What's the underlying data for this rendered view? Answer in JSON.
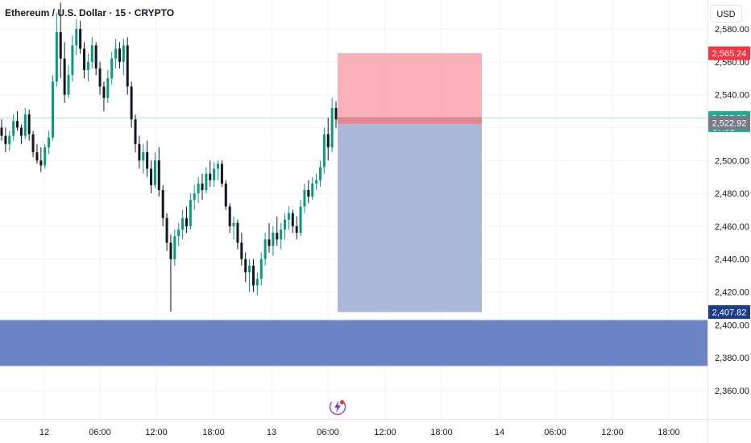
{
  "header": {
    "title": "Ethereum / U.S. Dollar · 15 · CRYPTO",
    "currency_label": "USD"
  },
  "colors": {
    "up": "#089981",
    "down": "#131722",
    "stop_zone": "#f7a8b0",
    "target_zone": "#a6b4d8",
    "demand_zone": "#6c83c4",
    "price_up_label": "#22ab94",
    "price_red_label": "#f23645",
    "price_gray_label": "#787b86",
    "price_navy_label": "#1e3a8a"
  },
  "logo": {
    "icon": "tradingview-lightning-logo-icon"
  },
  "chart_data": {
    "type": "candlestick",
    "y_axis": {
      "range": [
        2350,
        2592
      ],
      "ticks": [
        "2,580.00",
        "2,560.00",
        "2,540.00",
        "2,520.00",
        "2,500.00",
        "2,480.00",
        "2,460.00",
        "2,440.00",
        "2,420.00",
        "2,400.00",
        "2,380.00",
        "2,360.00"
      ]
    },
    "x_axis": {
      "ticks": [
        "12",
        "06:00",
        "12:00",
        "18:00",
        "13",
        "06:00",
        "12:00",
        "18:00",
        "14",
        "06:00",
        "12:00",
        "18:00"
      ]
    },
    "grid": true,
    "price_labels": [
      {
        "value": "2,565.24",
        "role": "stop",
        "color": "red"
      },
      {
        "value": "2,525.83",
        "role": "last",
        "color": "green",
        "countdown": "07:01"
      },
      {
        "value": "2,522.92",
        "role": "entry",
        "color": "gray"
      },
      {
        "value": "2,407.82",
        "role": "target",
        "color": "navy"
      }
    ],
    "position": {
      "side": "short",
      "entry": 2522.92,
      "stop": 2565.24,
      "target": 2407.82
    },
    "zones": [
      {
        "label": "",
        "top": 2403,
        "bottom": 2375
      }
    ],
    "candles": [
      [
        2520,
        2525,
        2512,
        2515
      ],
      [
        2515,
        2520,
        2505,
        2510
      ],
      [
        2510,
        2518,
        2506,
        2515
      ],
      [
        2515,
        2528,
        2512,
        2524
      ],
      [
        2524,
        2530,
        2518,
        2520
      ],
      [
        2520,
        2522,
        2510,
        2515
      ],
      [
        2515,
        2532,
        2513,
        2528
      ],
      [
        2528,
        2531,
        2512,
        2516
      ],
      [
        2516,
        2518,
        2502,
        2505
      ],
      [
        2505,
        2510,
        2498,
        2500
      ],
      [
        2500,
        2508,
        2493,
        2497
      ],
      [
        2497,
        2510,
        2495,
        2508
      ],
      [
        2508,
        2518,
        2504,
        2514
      ],
      [
        2514,
        2552,
        2512,
        2548
      ],
      [
        2548,
        2590,
        2545,
        2578
      ],
      [
        2578,
        2596,
        2550,
        2562
      ],
      [
        2562,
        2572,
        2535,
        2540
      ],
      [
        2540,
        2558,
        2538,
        2552
      ],
      [
        2552,
        2576,
        2548,
        2570
      ],
      [
        2570,
        2586,
        2564,
        2580
      ],
      [
        2580,
        2585,
        2565,
        2568
      ],
      [
        2568,
        2572,
        2550,
        2555
      ],
      [
        2555,
        2565,
        2548,
        2560
      ],
      [
        2560,
        2575,
        2556,
        2570
      ],
      [
        2570,
        2572,
        2552,
        2556
      ],
      [
        2556,
        2560,
        2540,
        2545
      ],
      [
        2545,
        2548,
        2530,
        2538
      ],
      [
        2538,
        2555,
        2535,
        2550
      ],
      [
        2550,
        2566,
        2546,
        2562
      ],
      [
        2562,
        2574,
        2556,
        2568
      ],
      [
        2568,
        2572,
        2556,
        2560
      ],
      [
        2560,
        2574,
        2552,
        2570
      ],
      [
        2570,
        2575,
        2540,
        2545
      ],
      [
        2545,
        2548,
        2520,
        2525
      ],
      [
        2525,
        2528,
        2505,
        2510
      ],
      [
        2510,
        2515,
        2495,
        2500
      ],
      [
        2500,
        2510,
        2492,
        2505
      ],
      [
        2505,
        2512,
        2490,
        2495
      ],
      [
        2495,
        2500,
        2480,
        2485
      ],
      [
        2485,
        2505,
        2483,
        2500
      ],
      [
        2500,
        2508,
        2478,
        2482
      ],
      [
        2482,
        2485,
        2460,
        2465
      ],
      [
        2465,
        2468,
        2445,
        2450
      ],
      [
        2450,
        2455,
        2408,
        2440
      ],
      [
        2440,
        2458,
        2436,
        2454
      ],
      [
        2454,
        2462,
        2448,
        2458
      ],
      [
        2458,
        2470,
        2452,
        2465
      ],
      [
        2465,
        2472,
        2456,
        2460
      ],
      [
        2460,
        2480,
        2458,
        2476
      ],
      [
        2476,
        2485,
        2470,
        2480
      ],
      [
        2480,
        2490,
        2474,
        2486
      ],
      [
        2486,
        2492,
        2476,
        2482
      ],
      [
        2482,
        2496,
        2480,
        2492
      ],
      [
        2492,
        2500,
        2484,
        2488
      ],
      [
        2488,
        2499,
        2484,
        2495
      ],
      [
        2495,
        2500,
        2488,
        2498
      ],
      [
        2498,
        2500,
        2484,
        2486
      ],
      [
        2486,
        2488,
        2470,
        2472
      ],
      [
        2472,
        2474,
        2456,
        2460
      ],
      [
        2460,
        2466,
        2452,
        2462
      ],
      [
        2462,
        2464,
        2446,
        2450
      ],
      [
        2450,
        2456,
        2436,
        2440
      ],
      [
        2440,
        2444,
        2426,
        2432
      ],
      [
        2432,
        2440,
        2420,
        2436
      ],
      [
        2436,
        2440,
        2420,
        2424
      ],
      [
        2424,
        2432,
        2418,
        2428
      ],
      [
        2428,
        2444,
        2424,
        2440
      ],
      [
        2440,
        2456,
        2436,
        2452
      ],
      [
        2452,
        2462,
        2444,
        2448
      ],
      [
        2448,
        2460,
        2442,
        2456
      ],
      [
        2456,
        2466,
        2448,
        2452
      ],
      [
        2452,
        2462,
        2446,
        2458
      ],
      [
        2458,
        2468,
        2452,
        2464
      ],
      [
        2464,
        2472,
        2458,
        2468
      ],
      [
        2468,
        2470,
        2456,
        2460
      ],
      [
        2460,
        2466,
        2452,
        2456
      ],
      [
        2456,
        2476,
        2454,
        2472
      ],
      [
        2472,
        2486,
        2468,
        2482
      ],
      [
        2482,
        2488,
        2474,
        2478
      ],
      [
        2478,
        2490,
        2476,
        2486
      ],
      [
        2486,
        2492,
        2482,
        2488
      ],
      [
        2488,
        2500,
        2484,
        2496
      ],
      [
        2496,
        2520,
        2492,
        2516
      ],
      [
        2516,
        2526,
        2500,
        2508
      ],
      [
        2508,
        2538,
        2505,
        2532
      ],
      [
        2532,
        2536,
        2520,
        2525
      ]
    ]
  }
}
